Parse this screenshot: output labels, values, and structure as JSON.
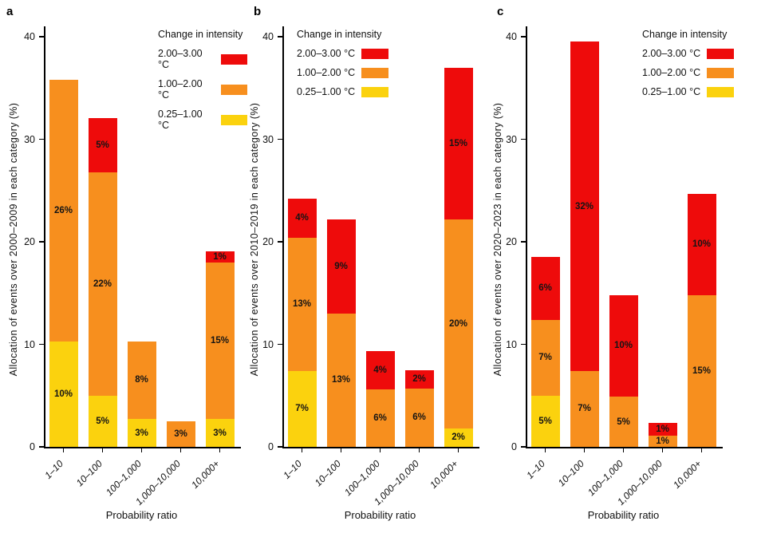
{
  "figure": {
    "xlabel": "Probability ratio",
    "legend": {
      "title": "Change in intensity",
      "items": [
        {
          "label": "2.00–3.00 °C",
          "key": "red"
        },
        {
          "label": "1.00–2.00 °C",
          "key": "orange"
        },
        {
          "label": "0.25–1.00 °C",
          "key": "yellow"
        }
      ]
    },
    "colors": {
      "red": "#ee0b0b",
      "orange": "#f78f1e",
      "yellow": "#fbd20e"
    }
  },
  "chart_data": [
    {
      "type": "bar",
      "panel": "a",
      "title": "",
      "ylabel": "Allocation of events over 2000–2009 in each category (%)",
      "xlabel": "Probability ratio",
      "ylim": [
        0,
        40
      ],
      "yticks": [
        0,
        10,
        20,
        30,
        40
      ],
      "grid": false,
      "legend_position": "top-right",
      "categories": [
        "1–10",
        "10–100",
        "100–1,000",
        "1,000–10,000",
        "10,000+"
      ],
      "stacked": true,
      "series": [
        {
          "name": "0.25–1.00 °C",
          "key": "yellow",
          "values": [
            10.3,
            5.0,
            2.7,
            0,
            2.7
          ],
          "labels": [
            "10%",
            "5%",
            "3%",
            "",
            "3%"
          ]
        },
        {
          "name": "1.00–2.00 °C",
          "key": "orange",
          "values": [
            25.5,
            21.8,
            7.6,
            2.5,
            15.3
          ],
          "labels": [
            "26%",
            "22%",
            "8%",
            "3%",
            "15%"
          ]
        },
        {
          "name": "2.00–3.00 °C",
          "key": "red",
          "values": [
            0,
            5.3,
            0,
            0,
            1.1
          ],
          "labels": [
            "",
            "5%",
            "",
            "",
            "1%"
          ]
        }
      ]
    },
    {
      "type": "bar",
      "panel": "b",
      "title": "",
      "ylabel": "Allocation of events over 2010–2019 in each category (%)",
      "xlabel": "Probability ratio",
      "ylim": [
        0,
        40
      ],
      "yticks": [
        0,
        10,
        20,
        30,
        40
      ],
      "grid": false,
      "legend_position": "top-left",
      "categories": [
        "1–10",
        "10–100",
        "100–1,000",
        "1,000–10,000",
        "10,000+"
      ],
      "stacked": true,
      "series": [
        {
          "name": "0.25–1.00 °C",
          "key": "yellow",
          "values": [
            7.4,
            0,
            0,
            0,
            1.8
          ],
          "labels": [
            "7%",
            "",
            "",
            "",
            "2%"
          ]
        },
        {
          "name": "1.00–2.00 °C",
          "key": "orange",
          "values": [
            13.0,
            13.0,
            5.6,
            5.7,
            20.4
          ],
          "labels": [
            "13%",
            "13%",
            "6%",
            "6%",
            "20%"
          ]
        },
        {
          "name": "2.00–3.00 °C",
          "key": "red",
          "values": [
            3.8,
            9.2,
            3.7,
            1.8,
            14.8
          ],
          "labels": [
            "4%",
            "9%",
            "4%",
            "2%",
            "15%"
          ]
        }
      ]
    },
    {
      "type": "bar",
      "panel": "c",
      "title": "",
      "ylabel": "Allocation of events over 2020–2023 in each category (%)",
      "xlabel": "Probability ratio",
      "ylim": [
        0,
        40
      ],
      "yticks": [
        0,
        10,
        20,
        30,
        40
      ],
      "grid": false,
      "legend_position": "top-right",
      "categories": [
        "1–10",
        "10–100",
        "100–1,000",
        "1,000–10,000",
        "10,000+"
      ],
      "stacked": true,
      "series": [
        {
          "name": "0.25–1.00 °C",
          "key": "yellow",
          "values": [
            5.0,
            0,
            0,
            0,
            0
          ],
          "labels": [
            "5%",
            "",
            "",
            "",
            ""
          ]
        },
        {
          "name": "1.00–2.00 °C",
          "key": "orange",
          "values": [
            7.4,
            7.4,
            4.9,
            1.1,
            14.8
          ],
          "labels": [
            "7%",
            "7%",
            "5%",
            "1%",
            "15%"
          ]
        },
        {
          "name": "2.00–3.00 °C",
          "key": "red",
          "values": [
            6.1,
            32.1,
            9.9,
            1.2,
            9.9
          ],
          "labels": [
            "6%",
            "32%",
            "10%",
            "1%",
            "10%"
          ]
        }
      ]
    }
  ]
}
